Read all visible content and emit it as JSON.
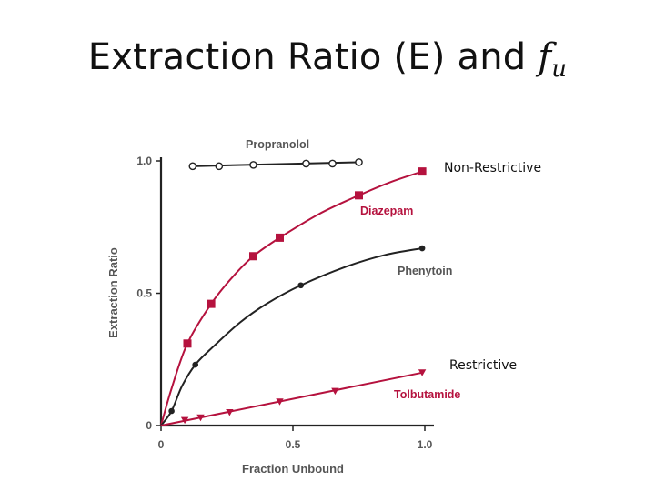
{
  "slide": {
    "title_main": "Extraction Ratio (E) and ",
    "title_symbol": "f",
    "title_subscript": "u"
  },
  "annotations": {
    "upper": "Non-Restrictive",
    "lower": "Restrictive"
  },
  "colors": {
    "red": "#b5123e",
    "black": "#222222",
    "label_gray": "#555555"
  },
  "chart_data": {
    "type": "line",
    "title": "",
    "xlabel": "Fraction Unbound",
    "ylabel": "Extraction Ratio",
    "xlim": [
      0,
      1.0
    ],
    "ylim": [
      0,
      1.0
    ],
    "xticks": [
      "0",
      "0.5",
      "1.0"
    ],
    "yticks": [
      "0",
      "0.5",
      "1.0"
    ],
    "grid": false,
    "series": [
      {
        "name": "Propranolol",
        "color": "#222222",
        "marker": "open-circle",
        "points": [
          [
            0.12,
            0.98
          ],
          [
            0.22,
            0.98
          ],
          [
            0.35,
            0.985
          ],
          [
            0.55,
            0.99
          ],
          [
            0.65,
            0.99
          ],
          [
            0.75,
            0.995
          ]
        ],
        "curve": [
          [
            0.12,
            0.98
          ],
          [
            0.75,
            0.995
          ]
        ]
      },
      {
        "name": "Diazepam",
        "color": "#b5123e",
        "marker": "square",
        "points": [
          [
            0.1,
            0.31
          ],
          [
            0.19,
            0.46
          ],
          [
            0.35,
            0.64
          ],
          [
            0.45,
            0.71
          ],
          [
            0.75,
            0.87
          ],
          [
            0.99,
            0.96
          ]
        ],
        "curve": [
          [
            0.0,
            0.0
          ],
          [
            0.04,
            0.14
          ],
          [
            0.1,
            0.31
          ],
          [
            0.19,
            0.46
          ],
          [
            0.27,
            0.56
          ],
          [
            0.35,
            0.64
          ],
          [
            0.45,
            0.71
          ],
          [
            0.6,
            0.8
          ],
          [
            0.75,
            0.87
          ],
          [
            0.87,
            0.92
          ],
          [
            0.99,
            0.96
          ]
        ]
      },
      {
        "name": "Phenytoin",
        "color": "#222222",
        "marker": "filled-circle",
        "points": [
          [
            0.04,
            0.055
          ],
          [
            0.13,
            0.23
          ],
          [
            0.53,
            0.53
          ],
          [
            0.99,
            0.67
          ]
        ],
        "curve": [
          [
            0.0,
            0.0
          ],
          [
            0.04,
            0.055
          ],
          [
            0.08,
            0.15
          ],
          [
            0.13,
            0.23
          ],
          [
            0.2,
            0.3
          ],
          [
            0.3,
            0.39
          ],
          [
            0.4,
            0.46
          ],
          [
            0.53,
            0.53
          ],
          [
            0.7,
            0.6
          ],
          [
            0.85,
            0.645
          ],
          [
            0.99,
            0.67
          ]
        ]
      },
      {
        "name": "Tolbutamide",
        "color": "#b5123e",
        "marker": "triangle-down",
        "points": [
          [
            0.09,
            0.02
          ],
          [
            0.15,
            0.03
          ],
          [
            0.26,
            0.05
          ],
          [
            0.45,
            0.09
          ],
          [
            0.66,
            0.13
          ],
          [
            0.99,
            0.2
          ]
        ],
        "curve": [
          [
            0.0,
            0.0
          ],
          [
            0.99,
            0.2
          ]
        ]
      }
    ],
    "series_labels": {
      "Propranolol": "Propranolol",
      "Diazepam": "Diazepam",
      "Phenytoin": "Phenytoin",
      "Tolbutamide": "Tolbutamide"
    }
  }
}
